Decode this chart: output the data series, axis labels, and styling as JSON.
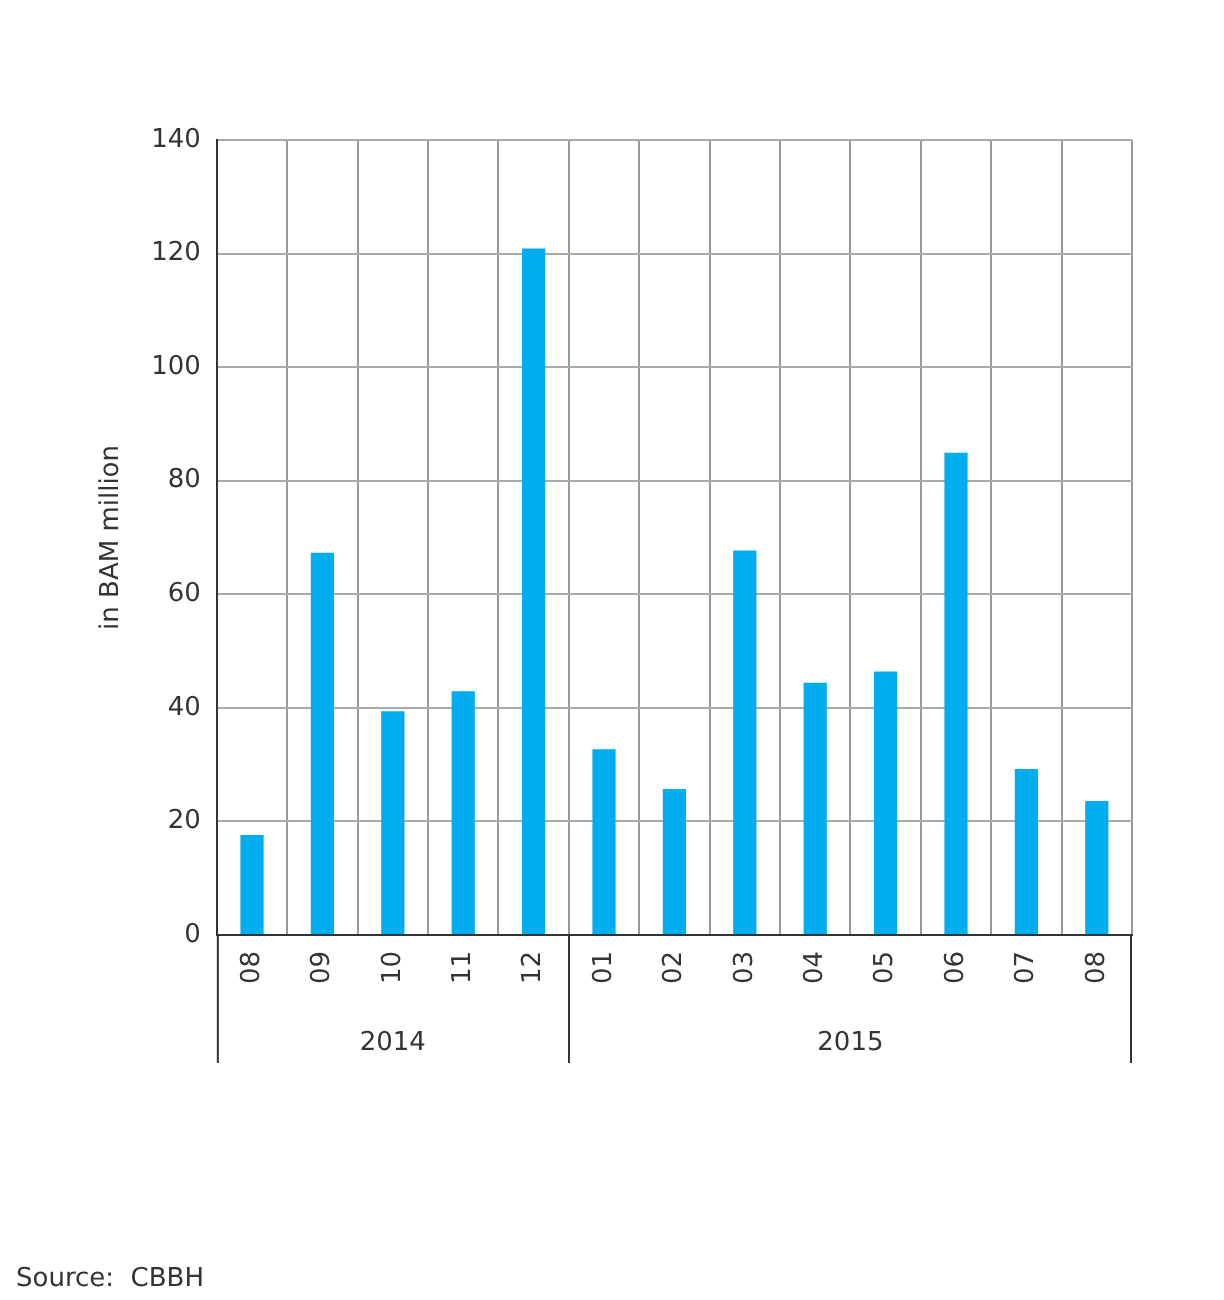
{
  "chart_data": {
    "type": "bar",
    "ylabel": "in BAM million",
    "categories": [
      "08",
      "09",
      "10",
      "11",
      "12",
      "01",
      "02",
      "03",
      "04",
      "05",
      "06",
      "07",
      "08"
    ],
    "values": [
      17.6,
      67.3,
      39.4,
      42.9,
      120.9,
      32.7,
      25.7,
      67.7,
      44.4,
      46.4,
      84.9,
      29.2,
      23.6
    ],
    "color": "#00aeef",
    "ylim": [
      0,
      140
    ],
    "yticks": [
      0,
      20,
      40,
      60,
      80,
      100,
      120,
      140
    ],
    "grid": true,
    "legend": false,
    "annotations": [
      "2014",
      "2015",
      "Source:  CBBH"
    ]
  }
}
